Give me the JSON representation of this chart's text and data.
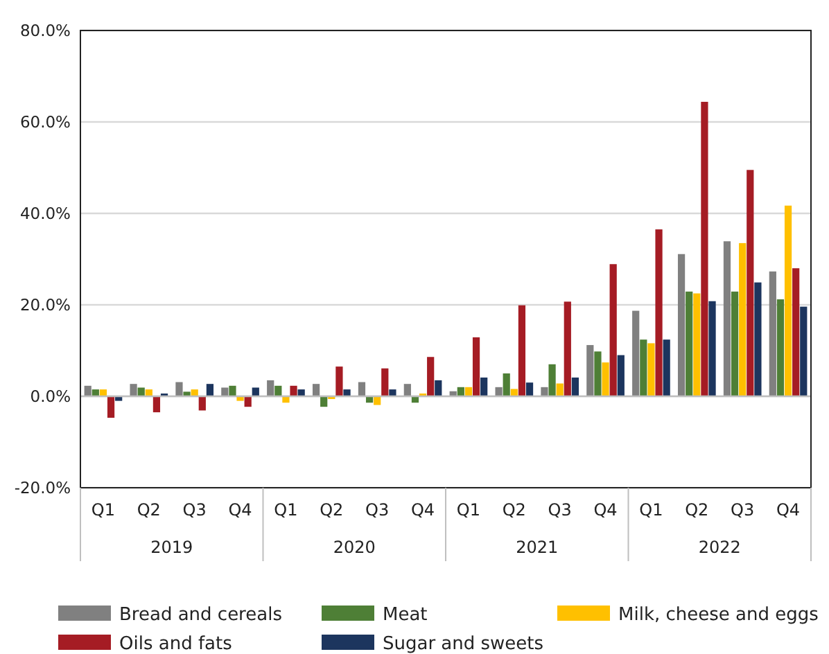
{
  "chart_data": {
    "type": "bar",
    "categories": [
      "Q1",
      "Q2",
      "Q3",
      "Q4",
      "Q1",
      "Q2",
      "Q3",
      "Q4",
      "Q1",
      "Q2",
      "Q3",
      "Q4",
      "Q1",
      "Q2",
      "Q3",
      "Q4"
    ],
    "annotations": [
      "2019",
      "2020",
      "2021",
      "2022"
    ],
    "series": [
      {
        "name": "Bread and cereals",
        "color": "#808080",
        "values": [
          2.3,
          2.7,
          3.1,
          1.9,
          3.5,
          2.7,
          3.1,
          2.7,
          1.1,
          2.0,
          2.0,
          11.2,
          18.7,
          31.1,
          33.9,
          27.3
        ]
      },
      {
        "name": "Meat",
        "color": "#4e7f36",
        "values": [
          1.5,
          1.9,
          1.0,
          2.3,
          2.3,
          -2.3,
          -1.4,
          -1.4,
          2.0,
          5.0,
          7.0,
          9.8,
          12.4,
          22.9,
          22.9,
          21.2
        ]
      },
      {
        "name": "Milk, cheese and eggs",
        "color": "#ffc000",
        "values": [
          1.5,
          1.5,
          1.5,
          -1.0,
          -1.4,
          -0.6,
          -1.9,
          0.6,
          2.0,
          1.6,
          2.8,
          7.4,
          11.6,
          22.5,
          33.5,
          41.7
        ]
      },
      {
        "name": "Oils and fats",
        "color": "#a51c24",
        "values": [
          -4.7,
          -3.5,
          -3.1,
          -2.3,
          2.3,
          6.5,
          6.1,
          8.6,
          12.9,
          19.9,
          20.7,
          28.9,
          36.5,
          64.4,
          49.5,
          28.0
        ]
      },
      {
        "name": "Sugar and sweets",
        "color": "#1c355e",
        "values": [
          -1.0,
          0.6,
          2.7,
          1.9,
          1.5,
          1.5,
          1.5,
          3.5,
          4.1,
          3.0,
          4.1,
          9.0,
          12.4,
          20.8,
          24.9,
          19.6
        ]
      }
    ],
    "ylim": [
      -20,
      80
    ],
    "yticks": [
      {
        "value": -20,
        "label": "-20.0%"
      },
      {
        "value": 0,
        "label": "0.0%"
      },
      {
        "value": 20,
        "label": "20.0%"
      },
      {
        "value": 40,
        "label": "40.0%"
      },
      {
        "value": 60,
        "label": "60.0%"
      },
      {
        "value": 80,
        "label": "80.0%"
      }
    ],
    "grid": "y",
    "legend": "bottom"
  }
}
